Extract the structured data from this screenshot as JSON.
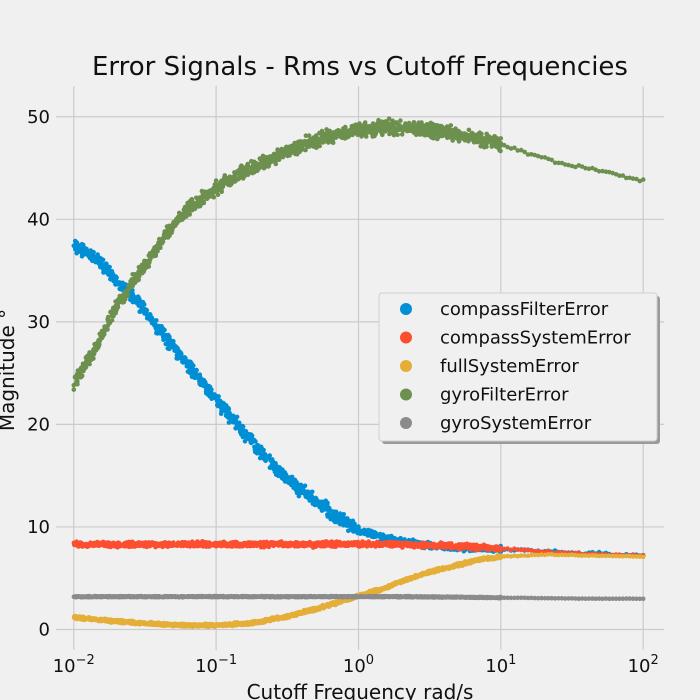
{
  "chart_data": {
    "type": "scatter",
    "title": "Error Signals - Rms vs Cutoff Frequencies",
    "xlabel": "Cutoff Frequency rad/s",
    "ylabel": "Magnitude °",
    "xscale": "log",
    "xlim": [
      0.0075,
      140
    ],
    "ylim": [
      -2,
      53
    ],
    "xticks": [
      {
        "value": 0.01,
        "base": "10",
        "exp": "−2"
      },
      {
        "value": 0.1,
        "base": "10",
        "exp": "−1"
      },
      {
        "value": 1,
        "base": "10",
        "exp": "0"
      },
      {
        "value": 10,
        "base": "10",
        "exp": "1"
      },
      {
        "value": 100,
        "base": "10",
        "exp": "2"
      }
    ],
    "yticks": [
      0,
      10,
      20,
      30,
      40,
      50
    ],
    "grid": true,
    "legend_position": "center-right",
    "series": [
      {
        "name": "compassFilterError",
        "color": "#008fd5",
        "x": [
          0.01,
          0.015,
          0.02,
          0.03,
          0.05,
          0.07,
          0.1,
          0.15,
          0.2,
          0.3,
          0.5,
          0.7,
          1,
          1.5,
          2,
          3,
          5,
          7,
          10,
          15,
          20,
          30,
          50,
          70,
          100
        ],
        "y": [
          37.5,
          36,
          34,
          31.5,
          27.5,
          25,
          22.5,
          19.5,
          17.5,
          15,
          12.5,
          11,
          9.7,
          9,
          8.6,
          8.2,
          8,
          7.9,
          7.8,
          7.7,
          7.6,
          7.5,
          7.4,
          7.3,
          7.2
        ]
      },
      {
        "name": "compassSystemError",
        "color": "#fc4f30",
        "x": [
          0.01,
          0.02,
          0.05,
          0.1,
          0.2,
          0.5,
          1,
          2,
          5,
          10,
          20,
          50,
          100
        ],
        "y": [
          8.3,
          8.3,
          8.3,
          8.3,
          8.3,
          8.3,
          8.3,
          8.3,
          8.1,
          7.9,
          7.6,
          7.3,
          7.2
        ]
      },
      {
        "name": "fullSystemError",
        "color": "#e5ae38",
        "x": [
          0.01,
          0.015,
          0.02,
          0.03,
          0.05,
          0.07,
          0.1,
          0.15,
          0.2,
          0.3,
          0.5,
          0.7,
          1,
          1.5,
          2,
          3,
          5,
          7,
          10,
          20,
          50,
          100
        ],
        "y": [
          1.2,
          0.95,
          0.8,
          0.6,
          0.45,
          0.4,
          0.42,
          0.55,
          0.75,
          1.2,
          2.0,
          2.6,
          3.3,
          4.0,
          4.7,
          5.5,
          6.3,
          6.8,
          7.1,
          7.3,
          7.2,
          7.1
        ]
      },
      {
        "name": "gyroFilterError",
        "color": "#6d904f",
        "x": [
          0.01,
          0.015,
          0.02,
          0.03,
          0.05,
          0.07,
          0.1,
          0.15,
          0.2,
          0.3,
          0.5,
          0.7,
          1,
          1.5,
          2,
          3,
          5,
          7,
          10,
          15,
          20,
          30,
          50,
          70,
          100
        ],
        "y": [
          24,
          28,
          31.5,
          35,
          39.5,
          41.5,
          43,
          44.5,
          45.3,
          46.5,
          47.7,
          48.3,
          48.7,
          49,
          49,
          48.7,
          48.3,
          47.8,
          47.3,
          46.5,
          45.9,
          45.3,
          44.8,
          44.2,
          43.8
        ]
      },
      {
        "name": "gyroSystemError",
        "color": "#8b8b8b",
        "x": [
          0.01,
          0.1,
          1,
          2,
          5,
          10,
          20,
          50,
          100
        ],
        "y": [
          3.2,
          3.2,
          3.2,
          3.2,
          3.15,
          3.1,
          3.05,
          3.0,
          3.0
        ]
      }
    ]
  }
}
